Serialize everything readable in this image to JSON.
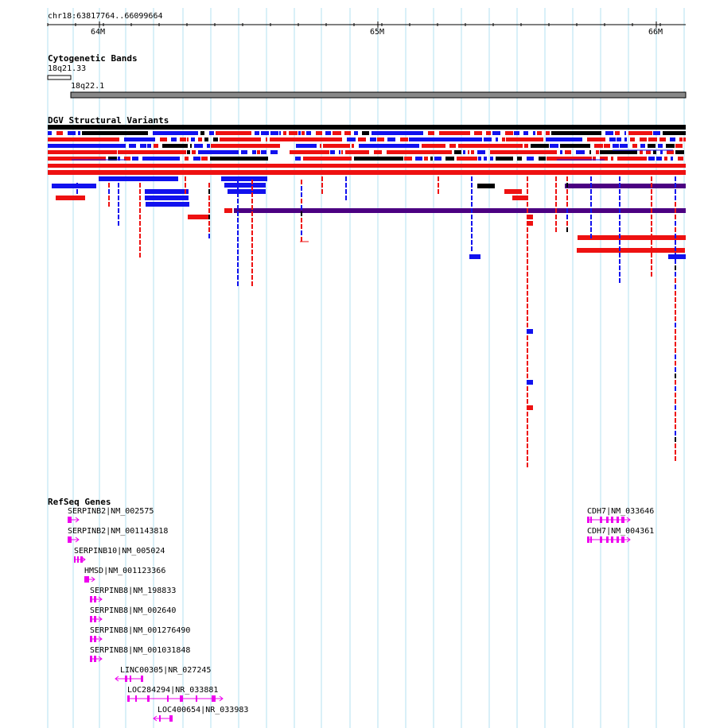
{
  "locus": "chr18:63817764..66099664",
  "ruler": {
    "ticks": [
      {
        "label": "64M",
        "pos": 64000000
      },
      {
        "label": "65M",
        "pos": 65000000
      },
      {
        "label": "66M",
        "pos": 66000000
      }
    ]
  },
  "colors": {
    "gridline": "#b3e0f0",
    "gain": "#ee1111",
    "loss": "#1111ee",
    "both": "#000000",
    "inversion": "#4b0082",
    "gene": "#ee00ee",
    "band": "#888888"
  },
  "tracks": {
    "cytoband": {
      "title": "Cytogenetic Bands",
      "bands": [
        {
          "name": "18q21.33"
        },
        {
          "name": "18q22.1"
        }
      ]
    },
    "dgv": {
      "title": "DGV Structural Variants"
    },
    "refseq": {
      "title": "RefSeq Genes",
      "genes": [
        {
          "label": "SERPINB2|NM_002575",
          "strand": "+"
        },
        {
          "label": "SERPINB2|NM_001143818",
          "strand": "+"
        },
        {
          "label": "SERPINB10|NM_005024",
          "strand": "+"
        },
        {
          "label": "HMSD|NM_001123366",
          "strand": "+"
        },
        {
          "label": "SERPINB8|NM_198833",
          "strand": "+"
        },
        {
          "label": "SERPINB8|NM_002640",
          "strand": "+"
        },
        {
          "label": "SERPINB8|NM_001276490",
          "strand": "+"
        },
        {
          "label": "SERPINB8|NM_001031848",
          "strand": "+"
        },
        {
          "label": "LINC00305|NR_027245",
          "strand": "-"
        },
        {
          "label": "LOC284294|NR_033881",
          "strand": "+"
        },
        {
          "label": "LOC400654|NR_033983",
          "strand": "-"
        },
        {
          "label": "CDH7|NM_033646",
          "strand": "+"
        },
        {
          "label": "CDH7|NM_004361",
          "strand": "+"
        }
      ]
    }
  }
}
